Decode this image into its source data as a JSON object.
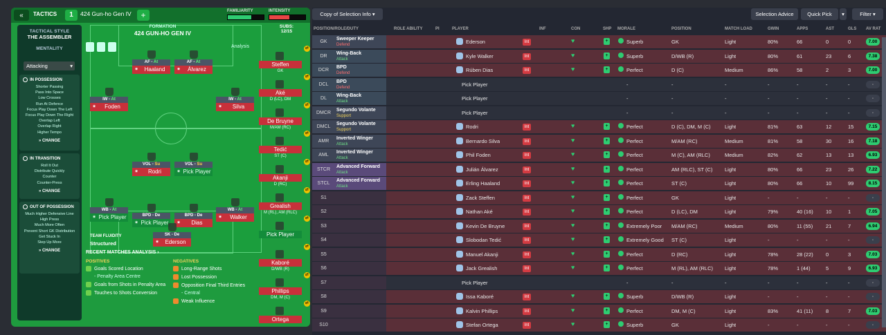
{
  "topbar": {
    "tactics_label": "TACTICS",
    "slot": "1",
    "tactic_name": "424 Gun-ho Gen IV",
    "familiarity_label": "FAMILIARITY",
    "intensity_label": "INTENSITY",
    "familiarity": 0.65,
    "intensity": 0.55
  },
  "side": {
    "style_h": "TACTICAL STYLE",
    "style": "THE ASSEMBLER",
    "mentality_h": "MENTALITY",
    "mentality": "Attacking",
    "possession_h": "IN POSSESSION",
    "possession": [
      "Shorter Passing",
      "Pass Into Space",
      "Low Crosses",
      "Run At Defence",
      "Focus Play Down The Left",
      "Focus Play Down The Right",
      "Overlap Left",
      "Overlap Right",
      "Higher Tempo"
    ],
    "transition_h": "IN TRANSITION",
    "transition": [
      "Roll It Out",
      "Distribute Quickly",
      "Counter",
      "Counter-Press"
    ],
    "oop_h": "OUT OF POSSESSION",
    "oop": [
      "Much Higher Defensive Line",
      "High Press",
      "Much More Often",
      "Prevent Short GK Distribution",
      "Get Stuck In",
      "Step Up More"
    ],
    "change": "CHANGE"
  },
  "formation": {
    "label": "FORMATION",
    "name": "424 GUN-HO GEN IV",
    "analysis": "Analysis",
    "fluid_h": "TEAM FLUIDITY",
    "fluid": "Structured"
  },
  "pitch": [
    {
      "role": "AF",
      "duty": "At",
      "name": "Haaland",
      "color": "red"
    },
    {
      "role": "AF",
      "duty": "At",
      "name": "Álvarez",
      "color": "red"
    },
    {
      "role": "IW",
      "duty": "At",
      "name": "Foden",
      "color": "red"
    },
    {
      "role": "IW",
      "duty": "At",
      "name": "Silva",
      "color": "red"
    },
    {
      "role": "VOL",
      "duty": "Su",
      "name": "Rodri",
      "color": "red"
    },
    {
      "role": "VOL",
      "duty": "Su",
      "name": "Pick Player",
      "color": "grn"
    },
    {
      "role": "WB",
      "duty": "At",
      "name": "Pick Player",
      "color": "grn"
    },
    {
      "role": "BPD",
      "duty": "De",
      "name": "Pick Player",
      "color": "grn"
    },
    {
      "role": "BPD",
      "duty": "De",
      "name": "Dias",
      "color": "red"
    },
    {
      "role": "WB",
      "duty": "At",
      "name": "Walker",
      "color": "red"
    },
    {
      "role": "SK",
      "duty": "De",
      "name": "Ederson",
      "color": "red"
    }
  ],
  "subs": {
    "heading": "SUBS:",
    "count": "12/15",
    "list": [
      {
        "name": "Steffen",
        "pos": "GK"
      },
      {
        "name": "Aké",
        "pos": "D (LC), DM"
      },
      {
        "name": "De Bruyne",
        "pos": "M/AM (RC)"
      },
      {
        "name": "Tedić",
        "pos": "ST (C)"
      },
      {
        "name": "Akanji",
        "pos": "D (RC)"
      },
      {
        "name": "Grealish",
        "pos": "M (RL), AM (RLC)"
      },
      {
        "name": "Pick Player",
        "pos": ""
      },
      {
        "name": "Kaboré",
        "pos": "D/WB (R)"
      },
      {
        "name": "Phillips",
        "pos": "DM, M (C)"
      },
      {
        "name": "Ortega",
        "pos": ""
      }
    ]
  },
  "matches": {
    "heading": "RECENT MATCHES ANALYSIS ›",
    "pos_h": "POSITIVES",
    "neg_h": "NEGATIVES",
    "positives": [
      "Goals Scored Location",
      "- Penalty Area Centre",
      "Goals from Shots in Penalty Area",
      "Touches to Shots Conversion"
    ],
    "negatives": [
      "Long-Range Shots",
      "Lost Possession",
      "Opposition Final Third Entries",
      "- Central",
      "Weak Influence"
    ]
  },
  "right": {
    "copy_btn": "Copy of Selection Info",
    "advice_btn": "Selection Advice",
    "pick_btn": "Quick Pick",
    "filter_btn": "Filter",
    "headers": [
      "POSITION/ROLE/DUTY",
      "ROLE ABILITY",
      "PI",
      "PLAYER",
      "INF",
      "CON",
      "SHP",
      "MORALE",
      "POSITION",
      "MATCH LOAD",
      "GWIN",
      "APPS",
      "AST",
      "GLS",
      "AV RAT"
    ],
    "rows": [
      {
        "pos": "GK",
        "r1": "Sweeper Keeper",
        "r2": "Defend",
        "d": "de",
        "stars": 3,
        "player": "Ederson",
        "morale": "Superb",
        "position": "GK",
        "load": "Light",
        "gwin": "80%",
        "apps": "66",
        "ast": "0",
        "gls": "0",
        "av": "7.00"
      },
      {
        "pos": "DR",
        "r1": "Wing-Back",
        "r2": "Attack",
        "d": "at",
        "stars": 4,
        "player": "Kyle Walker",
        "morale": "Superb",
        "position": "D/WB (R)",
        "load": "Light",
        "gwin": "80%",
        "apps": "61",
        "ast": "23",
        "gls": "6",
        "av": "7.38"
      },
      {
        "pos": "DCR",
        "r1": "BPD",
        "r2": "Defend",
        "d": "de",
        "stars": 4,
        "player": "Rúben Dias",
        "morale": "Perfect",
        "position": "D (C)",
        "load": "Medium",
        "gwin": "86%",
        "apps": "58",
        "ast": "2",
        "gls": "3",
        "av": "7.00"
      },
      {
        "pos": "DCL",
        "r1": "BPD",
        "r2": "Defend",
        "d": "de",
        "stars": 0,
        "player": "Pick Player",
        "morale": "-",
        "position": "-",
        "load": "-",
        "gwin": "-",
        "apps": "-",
        "ast": "-",
        "gls": "-",
        "av": "-"
      },
      {
        "pos": "DL",
        "r1": "Wing-Back",
        "r2": "Attack",
        "d": "at",
        "stars": 0,
        "player": "Pick Player",
        "morale": "-",
        "position": "-",
        "load": "-",
        "gwin": "-",
        "apps": "-",
        "ast": "-",
        "gls": "-",
        "av": "-"
      },
      {
        "pos": "DMCR",
        "r1": "Segundo Volante",
        "r2": "Support",
        "d": "su",
        "stars": 0,
        "player": "Pick Player",
        "morale": "-",
        "position": "-",
        "load": "-",
        "gwin": "-",
        "apps": "-",
        "ast": "-",
        "gls": "-",
        "av": "-"
      },
      {
        "pos": "DMCL",
        "r1": "Segundo Volante",
        "r2": "Support",
        "d": "su",
        "stars": 4,
        "player": "Rodri",
        "morale": "Perfect",
        "position": "D (C), DM, M (C)",
        "load": "Light",
        "gwin": "81%",
        "apps": "63",
        "ast": "12",
        "gls": "15",
        "av": "7.15"
      },
      {
        "pos": "AMR",
        "r1": "Inverted Winger",
        "r2": "Attack",
        "d": "at",
        "stars": 4,
        "player": "Bernardo Silva",
        "morale": "Perfect",
        "position": "M/AM (RC)",
        "load": "Medium",
        "gwin": "81%",
        "apps": "58",
        "ast": "30",
        "gls": "16",
        "av": "7.18"
      },
      {
        "pos": "AML",
        "r1": "Inverted Winger",
        "r2": "Attack",
        "d": "at",
        "stars": 4,
        "player": "Phil Foden",
        "morale": "Perfect",
        "position": "M (C), AM (RLC)",
        "load": "Medium",
        "gwin": "82%",
        "apps": "62",
        "ast": "13",
        "gls": "13",
        "av": "6.93"
      },
      {
        "pos": "STCR",
        "r1": "Advanced Forward",
        "r2": "Attack",
        "d": "at",
        "stars": 4,
        "player": "Julián Álvarez",
        "morale": "Perfect",
        "position": "AM (RLC), ST (C)",
        "load": "Light",
        "gwin": "80%",
        "apps": "66",
        "ast": "23",
        "gls": "26",
        "av": "7.22"
      },
      {
        "pos": "STCL",
        "r1": "Advanced Forward",
        "r2": "Attack",
        "d": "at",
        "stars": 5,
        "player": "Erling Haaland",
        "morale": "Perfect",
        "position": "ST (C)",
        "load": "Light",
        "gwin": "80%",
        "apps": "66",
        "ast": "10",
        "gls": "99",
        "av": "8.15"
      },
      {
        "pos": "S1",
        "r1": "",
        "r2": "",
        "d": "",
        "stars": -1,
        "player": "Zack Steffen",
        "morale": "Perfect",
        "position": "GK",
        "load": "Light",
        "gwin": "-",
        "apps": "-",
        "ast": "-",
        "gls": "-",
        "av": "-"
      },
      {
        "pos": "S2",
        "r1": "",
        "r2": "",
        "d": "",
        "stars": -1,
        "player": "Nathan Aké",
        "morale": "Perfect",
        "position": "D (LC), DM",
        "load": "Light",
        "gwin": "79%",
        "apps": "40 (16)",
        "ast": "10",
        "gls": "1",
        "av": "7.05"
      },
      {
        "pos": "S3",
        "r1": "",
        "r2": "",
        "d": "",
        "stars": -1,
        "player": "Kevin De Bruyne",
        "morale": "Extremely Poor",
        "position": "M/AM (RC)",
        "load": "Medium",
        "gwin": "80%",
        "apps": "11 (55)",
        "ast": "21",
        "gls": "7",
        "av": "6.94"
      },
      {
        "pos": "S4",
        "r1": "",
        "r2": "",
        "d": "",
        "stars": -1,
        "player": "Slobodan Tedić",
        "morale": "Extremely Good",
        "position": "ST (C)",
        "load": "Light",
        "gwin": "-",
        "apps": "-",
        "ast": "-",
        "gls": "-",
        "av": "-"
      },
      {
        "pos": "S5",
        "r1": "",
        "r2": "",
        "d": "",
        "stars": -1,
        "player": "Manuel Akanji",
        "morale": "Perfect",
        "position": "D (RC)",
        "load": "Light",
        "gwin": "78%",
        "apps": "28 (22)",
        "ast": "0",
        "gls": "3",
        "av": "7.03"
      },
      {
        "pos": "S6",
        "r1": "",
        "r2": "",
        "d": "",
        "stars": -1,
        "player": "Jack Grealish",
        "morale": "Perfect",
        "position": "M (RL), AM (RLC)",
        "load": "Light",
        "gwin": "78%",
        "apps": "1 (44)",
        "ast": "5",
        "gls": "9",
        "av": "6.93"
      },
      {
        "pos": "S7",
        "r1": "",
        "r2": "",
        "d": "",
        "stars": -1,
        "player": "Pick Player",
        "morale": "-",
        "position": "-",
        "load": "-",
        "gwin": "-",
        "apps": "-",
        "ast": "-",
        "gls": "-",
        "av": "-"
      },
      {
        "pos": "S8",
        "r1": "",
        "r2": "",
        "d": "",
        "stars": -1,
        "player": "Issa Kaboré",
        "morale": "Superb",
        "position": "D/WB (R)",
        "load": "Light",
        "gwin": "-",
        "apps": "-",
        "ast": "-",
        "gls": "-",
        "av": "-"
      },
      {
        "pos": "S9",
        "r1": "",
        "r2": "",
        "d": "",
        "stars": -1,
        "player": "Kalvin Phillips",
        "morale": "Perfect",
        "position": "DM, M (C)",
        "load": "Light",
        "gwin": "83%",
        "apps": "41 (11)",
        "ast": "8",
        "gls": "7",
        "av": "7.03"
      },
      {
        "pos": "S10",
        "r1": "",
        "r2": "",
        "d": "",
        "stars": -1,
        "player": "Stefan Ortega",
        "morale": "Superb",
        "position": "GK",
        "load": "Light",
        "gwin": "-",
        "apps": "-",
        "ast": "-",
        "gls": "-",
        "av": "-"
      }
    ]
  }
}
